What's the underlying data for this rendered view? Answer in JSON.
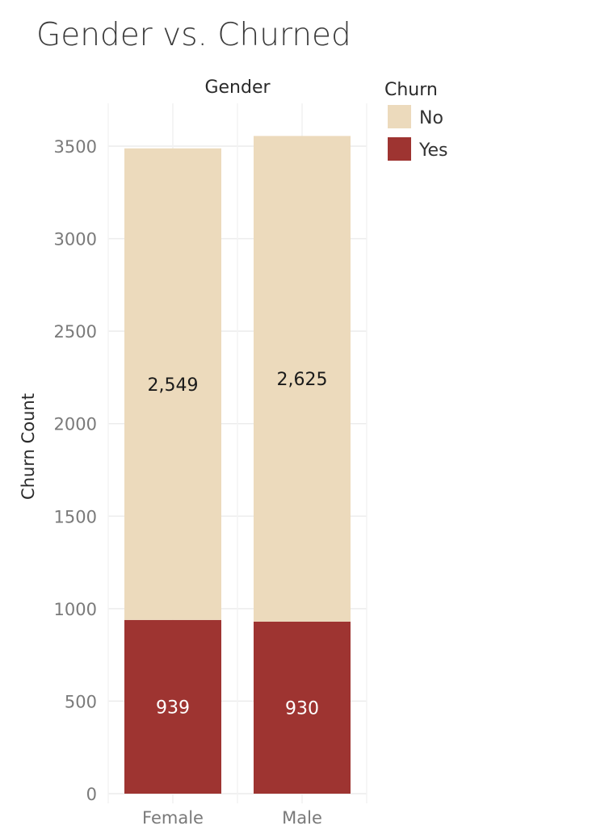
{
  "chart_data": {
    "type": "bar",
    "stacked": true,
    "title": "Gender vs. Churned",
    "facet_label": "Gender",
    "xlabel": "",
    "ylabel": "Churn Count",
    "categories": [
      "Female",
      "Male"
    ],
    "series": [
      {
        "name": "Yes",
        "values": [
          939,
          930
        ],
        "labels": [
          "939",
          "930"
        ],
        "color": "#9e3431",
        "label_color": "#ffffff"
      },
      {
        "name": "No",
        "values": [
          2549,
          2625
        ],
        "labels": [
          "2,549",
          "2,625"
        ],
        "color": "#ecdabc",
        "label_color": "#1a1a1a"
      }
    ],
    "ylim": [
      0,
      3700
    ],
    "yticks": [
      0,
      500,
      1000,
      1500,
      2000,
      2500,
      3000,
      3500
    ],
    "ytick_labels": [
      "0",
      "500",
      "1000",
      "1500",
      "2000",
      "2500",
      "3000",
      "3500"
    ],
    "grid": true,
    "legend": {
      "title": "Churn",
      "placement": "right",
      "entries": [
        {
          "name": "No",
          "color": "#ecdabc"
        },
        {
          "name": "Yes",
          "color": "#9e3431"
        }
      ]
    }
  }
}
